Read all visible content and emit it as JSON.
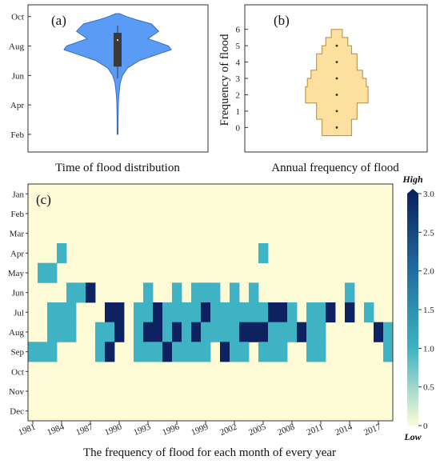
{
  "chart_data": [
    {
      "panel": "(a)",
      "type": "violin",
      "xlabel": "Time of flood distribution",
      "ylabel": "",
      "y_ticks": [
        "Feb",
        "Apr",
        "Jun",
        "Aug",
        "Oct"
      ],
      "y_tick_values": [
        2,
        4,
        6,
        8,
        10
      ],
      "ylim": [
        0.8,
        10.8
      ],
      "density": [
        [
          2.0,
          0.5
        ],
        [
          3.0,
          0.5
        ],
        [
          4.0,
          0.8
        ],
        [
          4.5,
          1.2
        ],
        [
          5.0,
          2.0
        ],
        [
          5.5,
          3.0
        ],
        [
          6.0,
          5.5
        ],
        [
          6.5,
          11
        ],
        [
          7.0,
          24
        ],
        [
          7.5,
          48
        ],
        [
          7.75,
          60
        ],
        [
          8.0,
          57
        ],
        [
          8.5,
          34
        ],
        [
          9.0,
          46
        ],
        [
          9.5,
          38
        ],
        [
          9.8,
          20
        ],
        [
          10.0,
          10
        ],
        [
          10.2,
          2
        ]
      ],
      "box": {
        "q1": 6.6,
        "median": 8.4,
        "q3": 8.9,
        "whisker_low": 5.8,
        "whisker_high": 9.4
      },
      "colors": {
        "fill": "#5a9cf5",
        "edge": "#3a6cc0",
        "box": "#3a3a3a"
      }
    },
    {
      "panel": "(b)",
      "type": "histogram-violin",
      "xlabel": "Annual frequency of flood",
      "ylabel": "Frequency of flood",
      "y_ticks": [
        "0",
        "1",
        "2",
        "3",
        "4",
        "5",
        "6"
      ],
      "ylim": [
        -1.5,
        7.5
      ],
      "points": [
        0,
        1,
        2,
        3,
        4,
        5
      ],
      "width_profile": [
        [
          -0.5,
          0.0,
          0.16
        ],
        [
          0.0,
          0.5,
          0.16
        ],
        [
          0.5,
          1.0,
          0.22
        ],
        [
          1.0,
          1.5,
          0.22
        ],
        [
          1.5,
          2.0,
          0.34
        ],
        [
          2.0,
          2.5,
          0.34
        ],
        [
          2.5,
          3.0,
          0.32
        ],
        [
          3.0,
          3.5,
          0.28
        ],
        [
          3.5,
          4.0,
          0.22
        ],
        [
          4.0,
          4.5,
          0.22
        ],
        [
          4.5,
          5.0,
          0.16
        ],
        [
          5.0,
          5.5,
          0.12
        ],
        [
          5.5,
          6.0,
          0.06
        ]
      ],
      "colors": {
        "fill": "#fddfa0",
        "edge": "#b88a3a"
      }
    },
    {
      "panel": "(c)",
      "type": "heatmap",
      "xlabel": "The frequency of flood for each month of every year",
      "x_tick_labels": [
        "1981",
        "1984",
        "1987",
        "1990",
        "1993",
        "1996",
        "1999",
        "2002",
        "2005",
        "2008",
        "2011",
        "2014",
        "2017"
      ],
      "years_first": 1981,
      "years_last": 2018,
      "months": [
        "Jan",
        "Feb",
        "Mar",
        "Apr",
        "May",
        "Jun",
        "Jul",
        "Aug",
        "Sep",
        "Oct",
        "Nov",
        "Dec"
      ],
      "colorbar": {
        "min": 0,
        "max": 3.0,
        "ticks": [
          "0",
          "0.5",
          "1.0",
          "1.5",
          "2.0",
          "2.5",
          "3.0"
        ],
        "high_label": "High",
        "low_label": "Low"
      },
      "colors": {
        "c0": "#fdfcd6",
        "c1": "#3fb3c4",
        "c2": "#1f6fa3",
        "c3": "#0c2261"
      },
      "values": {
        "1981": [
          0,
          0,
          0,
          0,
          0,
          0,
          0,
          0,
          1,
          0,
          0,
          0
        ],
        "1982": [
          0,
          0,
          0,
          0,
          1,
          0,
          0,
          0,
          1,
          0,
          0,
          0
        ],
        "1983": [
          0,
          0,
          0,
          0,
          1,
          0,
          1,
          1,
          1,
          0,
          0,
          0
        ],
        "1984": [
          0,
          0,
          0,
          1,
          0,
          0,
          1,
          1,
          0,
          0,
          0,
          0
        ],
        "1985": [
          0,
          0,
          0,
          0,
          0,
          1,
          1,
          1,
          0,
          0,
          0,
          0
        ],
        "1986": [
          0,
          0,
          0,
          0,
          0,
          1,
          0,
          0,
          0,
          0,
          0,
          0
        ],
        "1987": [
          0,
          0,
          0,
          0,
          0,
          3,
          0,
          0,
          0,
          0,
          0,
          0
        ],
        "1988": [
          0,
          0,
          0,
          0,
          0,
          0,
          0,
          1,
          1,
          0,
          0,
          0
        ],
        "1989": [
          0,
          0,
          0,
          0,
          0,
          0,
          3,
          1,
          3,
          0,
          0,
          0
        ],
        "1990": [
          0,
          0,
          0,
          0,
          0,
          0,
          3,
          3,
          0,
          0,
          0,
          0
        ],
        "1991": [
          0,
          0,
          0,
          0,
          0,
          0,
          0,
          0,
          0,
          0,
          0,
          0
        ],
        "1992": [
          0,
          0,
          0,
          0,
          0,
          0,
          1,
          1,
          1,
          0,
          0,
          0
        ],
        "1993": [
          0,
          0,
          0,
          0,
          0,
          1,
          1,
          3,
          1,
          0,
          0,
          0
        ],
        "1994": [
          0,
          0,
          0,
          0,
          0,
          0,
          3,
          3,
          1,
          0,
          0,
          0
        ],
        "1995": [
          0,
          0,
          0,
          0,
          0,
          0,
          1,
          1,
          3,
          0,
          0,
          0
        ],
        "1996": [
          0,
          0,
          0,
          0,
          0,
          1,
          1,
          3,
          1,
          0,
          0,
          0
        ],
        "1997": [
          0,
          0,
          0,
          0,
          0,
          0,
          1,
          1,
          1,
          0,
          0,
          0
        ],
        "1998": [
          0,
          0,
          0,
          0,
          0,
          1,
          1,
          3,
          1,
          0,
          0,
          0
        ],
        "1999": [
          0,
          0,
          0,
          0,
          0,
          1,
          3,
          1,
          1,
          0,
          0,
          0
        ],
        "2000": [
          0,
          0,
          0,
          0,
          0,
          1,
          1,
          1,
          0,
          0,
          0,
          0
        ],
        "2001": [
          0,
          0,
          0,
          0,
          0,
          0,
          1,
          1,
          3,
          0,
          0,
          0
        ],
        "2002": [
          0,
          0,
          0,
          0,
          0,
          1,
          1,
          1,
          1,
          0,
          0,
          0
        ],
        "2003": [
          0,
          0,
          0,
          0,
          0,
          0,
          1,
          3,
          1,
          0,
          0,
          0
        ],
        "2004": [
          0,
          0,
          0,
          0,
          0,
          1,
          1,
          3,
          0,
          0,
          0,
          0
        ],
        "2005": [
          0,
          0,
          0,
          1,
          0,
          0,
          1,
          3,
          1,
          0,
          0,
          0
        ],
        "2006": [
          0,
          0,
          0,
          0,
          0,
          0,
          3,
          1,
          1,
          0,
          0,
          0
        ],
        "2007": [
          0,
          0,
          0,
          0,
          0,
          0,
          3,
          1,
          1,
          0,
          0,
          0
        ],
        "2008": [
          0,
          0,
          0,
          0,
          0,
          0,
          1,
          1,
          0,
          0,
          0,
          0
        ],
        "2009": [
          0,
          0,
          0,
          0,
          0,
          0,
          0,
          3,
          0,
          0,
          0,
          0
        ],
        "2010": [
          0,
          0,
          0,
          0,
          0,
          0,
          1,
          1,
          1,
          0,
          0,
          0
        ],
        "2011": [
          0,
          0,
          0,
          0,
          0,
          0,
          1,
          1,
          1,
          0,
          0,
          0
        ],
        "2012": [
          0,
          0,
          0,
          0,
          0,
          0,
          3,
          0,
          0,
          0,
          0,
          0
        ],
        "2013": [
          0,
          0,
          0,
          0,
          0,
          0,
          0,
          0,
          0,
          0,
          0,
          0
        ],
        "2014": [
          0,
          0,
          0,
          0,
          0,
          1,
          3,
          0,
          0,
          0,
          0,
          0
        ],
        "2015": [
          0,
          0,
          0,
          0,
          0,
          0,
          0,
          0,
          0,
          0,
          0,
          0
        ],
        "2016": [
          0,
          0,
          0,
          0,
          0,
          0,
          1,
          0,
          0,
          0,
          0,
          0
        ],
        "2017": [
          0,
          0,
          0,
          0,
          0,
          0,
          0,
          3,
          0,
          0,
          0,
          0
        ],
        "2018": [
          0,
          0,
          0,
          0,
          0,
          0,
          0,
          1,
          1,
          0,
          0,
          0
        ]
      }
    }
  ]
}
